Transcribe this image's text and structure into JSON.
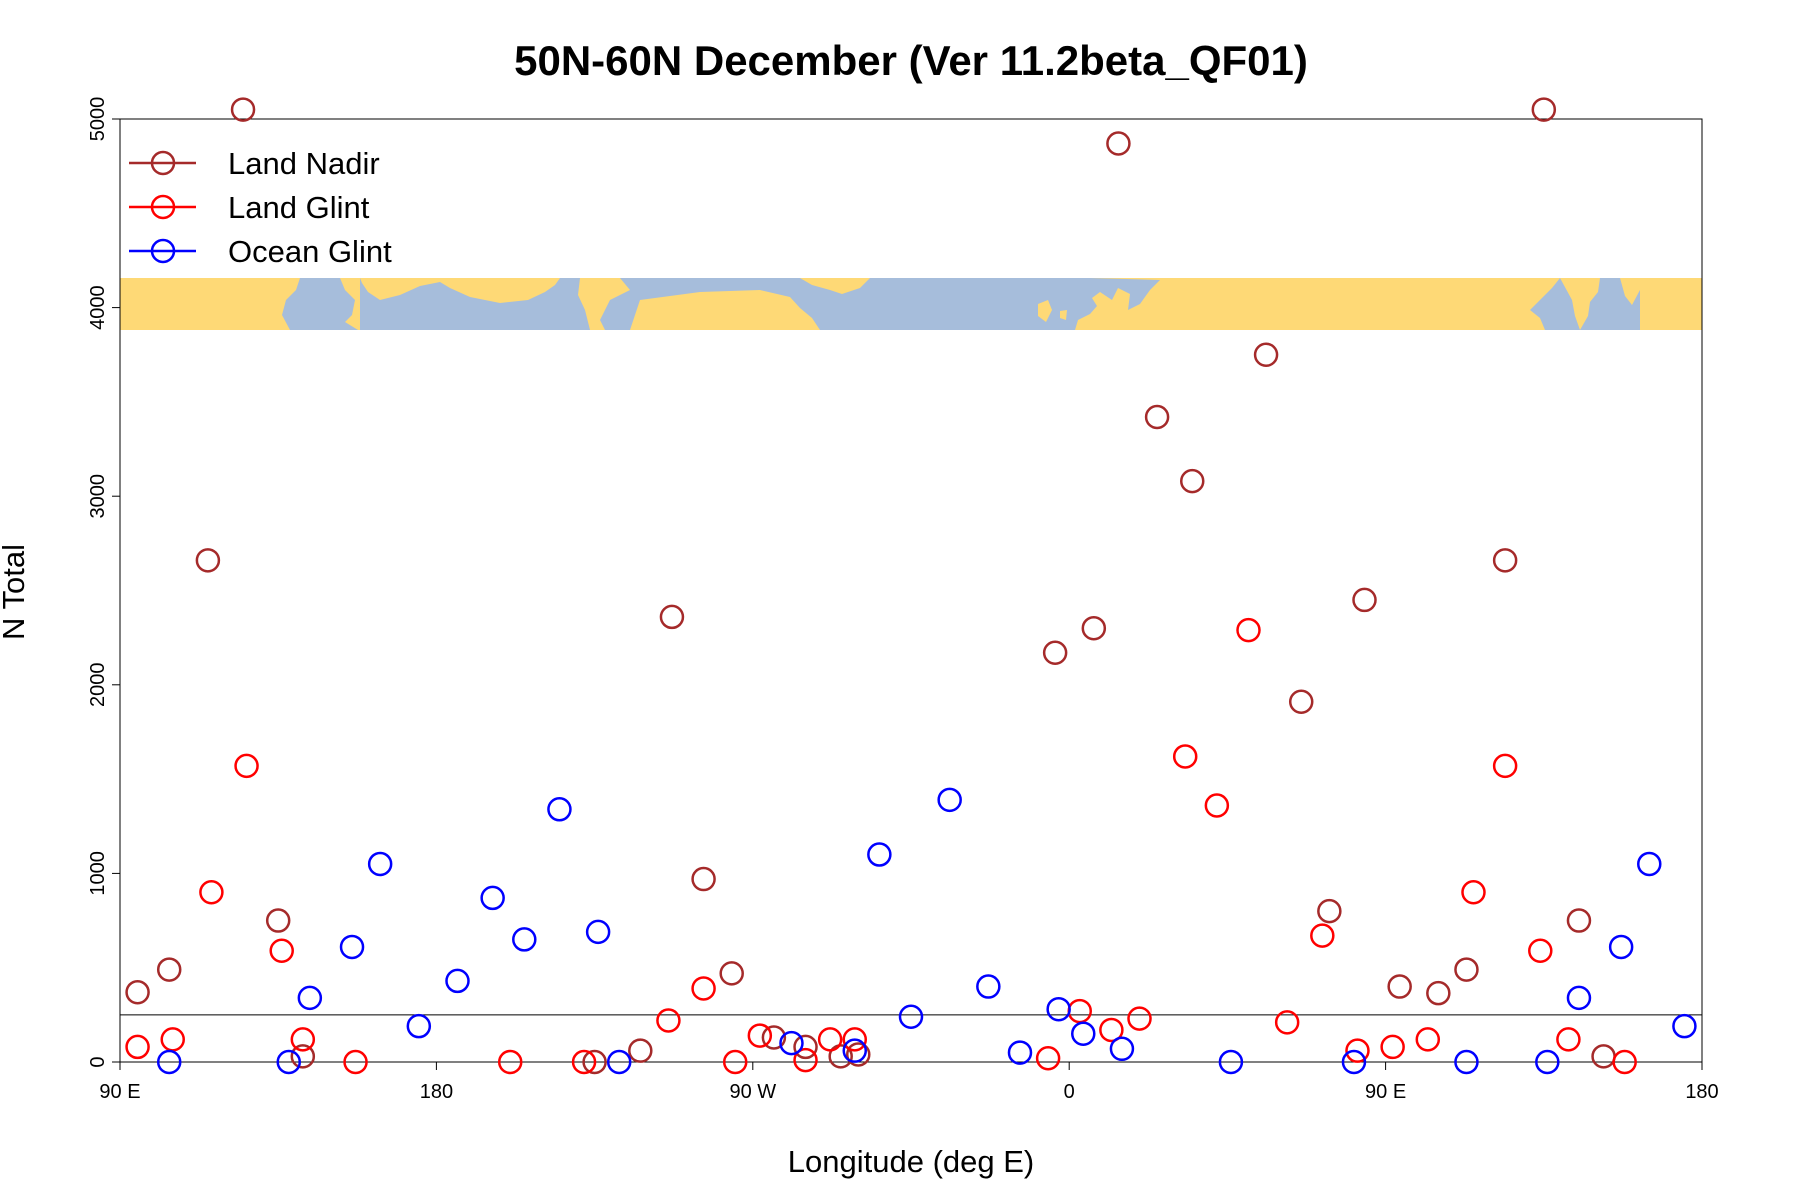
{
  "chart_data": {
    "type": "scatter",
    "title": "50N-60N December (Ver 11.2beta_QF01)",
    "xlabel": "Longitude (deg E)",
    "ylabel": "N Total",
    "xlim": [
      90,
      540
    ],
    "ylim": [
      0,
      5000
    ],
    "x_ticks": [
      {
        "value": 90,
        "label": "90 E"
      },
      {
        "value": 180,
        "label": "180"
      },
      {
        "value": 270,
        "label": "90 W"
      },
      {
        "value": 360,
        "label": "0"
      },
      {
        "value": 450,
        "label": "90 E"
      },
      {
        "value": 540,
        "label": "180"
      }
    ],
    "y_ticks": [
      {
        "value": 0,
        "label": "0"
      },
      {
        "value": 1000,
        "label": "1000"
      },
      {
        "value": 2000,
        "label": "2000"
      },
      {
        "value": 3000,
        "label": "3000"
      },
      {
        "value": 4000,
        "label": "4000"
      },
      {
        "value": 5000,
        "label": "5000"
      }
    ],
    "reference_line_y": 250,
    "map_strip": {
      "y_min": 3920,
      "y_max": 4200,
      "land_color": "#fed976",
      "ocean_color": "#a6bddb"
    },
    "legend_position": "top-left",
    "series": [
      {
        "name": "Land Nadir",
        "color": "#a52a2a",
        "points": [
          [
            95,
            370
          ],
          [
            104,
            490
          ],
          [
            115,
            2660
          ],
          [
            125,
            5050
          ],
          [
            135,
            750
          ],
          [
            142,
            30
          ],
          [
            225,
            0
          ],
          [
            238,
            60
          ],
          [
            247,
            2360
          ],
          [
            256,
            970
          ],
          [
            264,
            470
          ],
          [
            276,
            130
          ],
          [
            285,
            80
          ],
          [
            295,
            30
          ],
          [
            300,
            40
          ],
          [
            356,
            2170
          ],
          [
            367,
            2300
          ],
          [
            374,
            4870
          ],
          [
            385,
            3420
          ],
          [
            395,
            3080
          ],
          [
            416,
            3750
          ],
          [
            426,
            1910
          ],
          [
            434,
            800
          ],
          [
            444,
            2450
          ],
          [
            454,
            400
          ],
          [
            465,
            365
          ],
          [
            473,
            490
          ],
          [
            484,
            2660
          ],
          [
            495,
            5050
          ],
          [
            505,
            750
          ],
          [
            512,
            30
          ]
        ]
      },
      {
        "name": "Land Glint",
        "color": "#ff0000",
        "points": [
          [
            95,
            80
          ],
          [
            105,
            120
          ],
          [
            116,
            900
          ],
          [
            126,
            1570
          ],
          [
            136,
            590
          ],
          [
            142,
            120
          ],
          [
            157,
            0
          ],
          [
            201,
            0
          ],
          [
            222,
            0
          ],
          [
            246,
            220
          ],
          [
            256,
            390
          ],
          [
            265,
            0
          ],
          [
            272,
            140
          ],
          [
            285,
            10
          ],
          [
            292,
            120
          ],
          [
            299,
            120
          ],
          [
            354,
            20
          ],
          [
            363,
            270
          ],
          [
            372,
            170
          ],
          [
            380,
            230
          ],
          [
            393,
            1620
          ],
          [
            402,
            1360
          ],
          [
            411,
            2290
          ],
          [
            422,
            210
          ],
          [
            432,
            670
          ],
          [
            442,
            60
          ],
          [
            452,
            80
          ],
          [
            462,
            120
          ],
          [
            475,
            900
          ],
          [
            484,
            1570
          ],
          [
            494,
            590
          ],
          [
            502,
            120
          ],
          [
            518,
            0
          ]
        ]
      },
      {
        "name": "Ocean Glint",
        "color": "#0000ff",
        "points": [
          [
            104,
            0
          ],
          [
            138,
            0
          ],
          [
            144,
            340
          ],
          [
            156,
            610
          ],
          [
            164,
            1050
          ],
          [
            175,
            190
          ],
          [
            186,
            430
          ],
          [
            196,
            870
          ],
          [
            205,
            650
          ],
          [
            215,
            1340
          ],
          [
            226,
            690
          ],
          [
            232,
            0
          ],
          [
            281,
            100
          ],
          [
            299,
            60
          ],
          [
            306,
            1100
          ],
          [
            315,
            240
          ],
          [
            326,
            1390
          ],
          [
            337,
            400
          ],
          [
            346,
            50
          ],
          [
            357,
            280
          ],
          [
            364,
            150
          ],
          [
            375,
            70
          ],
          [
            406,
            0
          ],
          [
            441,
            0
          ],
          [
            473,
            0
          ],
          [
            496,
            0
          ],
          [
            505,
            340
          ],
          [
            517,
            610
          ],
          [
            525,
            1050
          ],
          [
            535,
            190
          ]
        ]
      }
    ]
  }
}
